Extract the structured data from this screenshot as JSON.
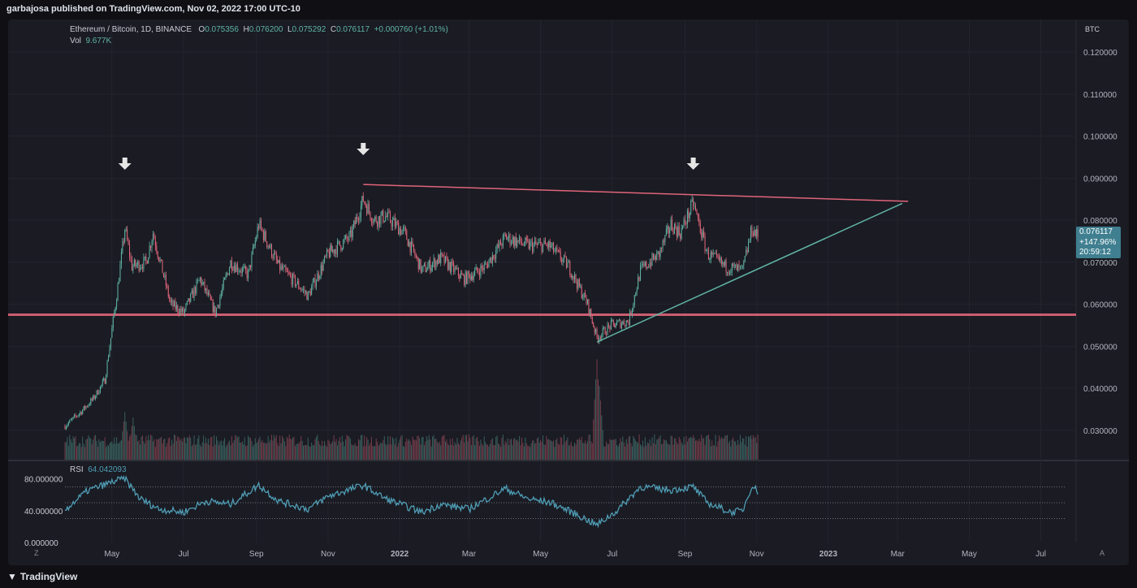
{
  "header": {
    "published": "garbajosa published on TradingView.com, Nov 02, 2022 17:00 UTC-10"
  },
  "legend": {
    "pair": "Ethereum / Bitcoin, 1D, BINANCE",
    "o_label": "O",
    "o_value": "0.075356",
    "h_label": "H",
    "h_value": "0.076200",
    "l_label": "L",
    "l_value": "0.075292",
    "c_label": "C",
    "c_value": "0.076117",
    "change": "+0.000760 (+1.01%)",
    "vol_label": "Vol",
    "vol_value": "9.677K"
  },
  "rsi_legend": {
    "label": "RSI",
    "value": "64.042093"
  },
  "price_tag": {
    "price": "0.076117",
    "change": "+147.96%",
    "countdown": "20:59:12"
  },
  "footer": {
    "brand": "TradingView"
  },
  "axis": {
    "corner_left": "Z",
    "corner_right": "A"
  },
  "colors": {
    "up": "#5fb3a3",
    "down": "#e0657a",
    "resistance": "#e0657a",
    "support": "#5fb3a3",
    "rsi": "#4f9db5",
    "background": "#1a1b23"
  },
  "chart_data": {
    "type": "candlestick",
    "symbol": "ETHBTC",
    "timeframe": "1D",
    "y_unit": "BTC",
    "ylim": [
      0.023,
      0.127
    ],
    "y_ticks": [
      "0.120000",
      "0.110000",
      "0.100000",
      "0.090000",
      "0.080000",
      "0.070000",
      "0.060000",
      "0.050000",
      "0.040000",
      "0.030000"
    ],
    "x_ticks": [
      "May",
      "Jul",
      "Sep",
      "Nov",
      "2022",
      "Mar",
      "May",
      "Jul",
      "Sep",
      "Nov",
      "2023",
      "Mar",
      "May",
      "Jul"
    ],
    "x_range": [
      "2021-03-22",
      "2023-07-31"
    ],
    "price_path": [
      [
        "2021-03-22",
        0.031
      ],
      [
        "2021-04-05",
        0.0345
      ],
      [
        "2021-04-15",
        0.0375
      ],
      [
        "2021-04-25",
        0.042
      ],
      [
        "2021-05-05",
        0.062
      ],
      [
        "2021-05-12",
        0.078
      ],
      [
        "2021-05-18",
        0.069
      ],
      [
        "2021-05-30",
        0.07
      ],
      [
        "2021-06-05",
        0.077
      ],
      [
        "2021-06-20",
        0.06
      ],
      [
        "2021-07-01",
        0.058
      ],
      [
        "2021-07-15",
        0.066
      ],
      [
        "2021-07-28",
        0.058
      ],
      [
        "2021-08-10",
        0.07
      ],
      [
        "2021-08-25",
        0.067
      ],
      [
        "2021-09-03",
        0.079
      ],
      [
        "2021-09-20",
        0.069
      ],
      [
        "2021-10-05",
        0.065
      ],
      [
        "2021-10-15",
        0.062
      ],
      [
        "2021-11-01",
        0.072
      ],
      [
        "2021-11-20",
        0.076
      ],
      [
        "2021-12-01",
        0.085
      ],
      [
        "2021-12-10",
        0.08
      ],
      [
        "2021-12-20",
        0.081
      ],
      [
        "2022-01-05",
        0.077
      ],
      [
        "2022-01-20",
        0.068
      ],
      [
        "2022-02-05",
        0.071
      ],
      [
        "2022-02-25",
        0.066
      ],
      [
        "2022-03-15",
        0.069
      ],
      [
        "2022-04-01",
        0.076
      ],
      [
        "2022-04-20",
        0.074
      ],
      [
        "2022-05-08",
        0.074
      ],
      [
        "2022-05-25",
        0.069
      ],
      [
        "2022-06-10",
        0.06
      ],
      [
        "2022-06-18",
        0.052
      ],
      [
        "2022-06-30",
        0.055
      ],
      [
        "2022-07-15",
        0.056
      ],
      [
        "2022-07-25",
        0.068
      ],
      [
        "2022-08-10",
        0.072
      ],
      [
        "2022-08-20",
        0.079
      ],
      [
        "2022-08-28",
        0.077
      ],
      [
        "2022-09-08",
        0.084
      ],
      [
        "2022-09-20",
        0.072
      ],
      [
        "2022-10-05",
        0.069
      ],
      [
        "2022-10-20",
        0.068
      ],
      [
        "2022-10-28",
        0.078
      ],
      [
        "2022-11-02",
        0.0761
      ]
    ],
    "volume_spikes": [
      [
        "2021-05-12",
        0.45
      ],
      [
        "2021-05-19",
        0.4
      ],
      [
        "2022-06-18",
        0.95
      ],
      [
        "2022-06-20",
        0.7
      ]
    ],
    "rsi": {
      "ylim": [
        0,
        100
      ],
      "y_ticks": [
        "80.000000",
        "40.000000",
        "0.000000"
      ],
      "bands": [
        70,
        50,
        30
      ],
      "path": [
        [
          "2021-03-22",
          41
        ],
        [
          "2021-04-10",
          65
        ],
        [
          "2021-05-05",
          78
        ],
        [
          "2021-05-12",
          80
        ],
        [
          "2021-05-25",
          55
        ],
        [
          "2021-06-10",
          42
        ],
        [
          "2021-07-01",
          38
        ],
        [
          "2021-07-20",
          52
        ],
        [
          "2021-08-10",
          48
        ],
        [
          "2021-09-03",
          72
        ],
        [
          "2021-09-20",
          52
        ],
        [
          "2021-10-15",
          42
        ],
        [
          "2021-11-01",
          58
        ],
        [
          "2021-12-01",
          72
        ],
        [
          "2021-12-20",
          55
        ],
        [
          "2022-01-20",
          38
        ],
        [
          "2022-02-05",
          48
        ],
        [
          "2022-03-01",
          42
        ],
        [
          "2022-04-01",
          68
        ],
        [
          "2022-04-20",
          55
        ],
        [
          "2022-05-10",
          50
        ],
        [
          "2022-06-01",
          35
        ],
        [
          "2022-06-18",
          22
        ],
        [
          "2022-07-05",
          40
        ],
        [
          "2022-07-25",
          70
        ],
        [
          "2022-08-20",
          66
        ],
        [
          "2022-09-08",
          70
        ],
        [
          "2022-09-20",
          50
        ],
        [
          "2022-10-10",
          38
        ],
        [
          "2022-10-20",
          40
        ],
        [
          "2022-10-28",
          72
        ],
        [
          "2022-11-02",
          64
        ]
      ]
    },
    "drawings": {
      "resistance_line": [
        [
          "2021-12-01",
          0.0885
        ],
        [
          "2023-03-10",
          0.0845
        ]
      ],
      "support_trendline": [
        [
          "2022-06-18",
          0.051
        ],
        [
          "2023-03-05",
          0.084
        ]
      ],
      "horizontal_level": 0.0575,
      "arrows": [
        "2021-05-12",
        "2021-12-01",
        "2022-09-08"
      ]
    }
  }
}
